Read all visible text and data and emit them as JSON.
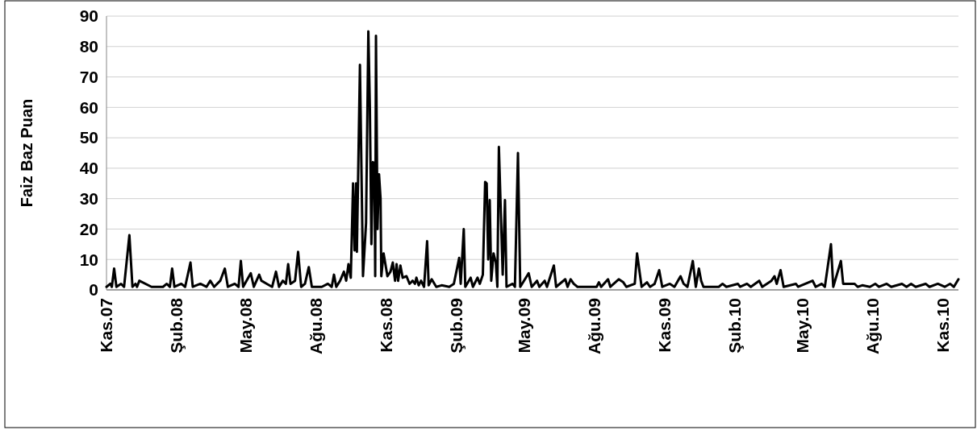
{
  "chart_data": {
    "type": "line",
    "ylabel": "Faiz Baz Puan",
    "color": "#000000",
    "grid": "y",
    "xlim": [
      "2007-11-01",
      "2010-11-21"
    ],
    "ylim": [
      0,
      90
    ],
    "yticks": [
      0,
      10,
      20,
      30,
      40,
      50,
      60,
      70,
      80,
      90
    ],
    "xticks": [
      {
        "value": "2007-11-01",
        "label": "Kas.07"
      },
      {
        "value": "2008-02-01",
        "label": "Şub.08"
      },
      {
        "value": "2008-05-01",
        "label": "May.08"
      },
      {
        "value": "2008-08-01",
        "label": "Ağu.08"
      },
      {
        "value": "2008-11-01",
        "label": "Kas.08"
      },
      {
        "value": "2009-02-01",
        "label": "Şub.09"
      },
      {
        "value": "2009-05-01",
        "label": "May.09"
      },
      {
        "value": "2009-08-01",
        "label": "Ağu.09"
      },
      {
        "value": "2009-11-01",
        "label": "Kas.09"
      },
      {
        "value": "2010-02-01",
        "label": "Şub.10"
      },
      {
        "value": "2010-05-01",
        "label": "May.10"
      },
      {
        "value": "2010-08-01",
        "label": "Ağu.10"
      },
      {
        "value": "2010-11-01",
        "label": "Kas.10"
      }
    ],
    "x": [
      "2007-11-01",
      "2007-11-06",
      "2007-11-08",
      "2007-11-11",
      "2007-11-14",
      "2007-11-20",
      "2007-11-24",
      "2007-12-01",
      "2007-12-05",
      "2007-12-09",
      "2007-12-11",
      "2007-12-14",
      "2007-12-30",
      "2008-01-14",
      "2008-01-19",
      "2008-01-23",
      "2008-01-26",
      "2008-01-29",
      "2008-02-07",
      "2008-02-12",
      "2008-02-19",
      "2008-02-22",
      "2008-03-03",
      "2008-03-11",
      "2008-03-16",
      "2008-03-21",
      "2008-03-29",
      "2008-04-04",
      "2008-04-08",
      "2008-04-17",
      "2008-04-22",
      "2008-04-25",
      "2008-04-28",
      "2008-05-08",
      "2008-05-12",
      "2008-05-19",
      "2008-05-22",
      "2008-05-29",
      "2008-06-05",
      "2008-06-10",
      "2008-06-14",
      "2008-06-19",
      "2008-06-23",
      "2008-06-26",
      "2008-06-29",
      "2008-07-05",
      "2008-07-09",
      "2008-07-13",
      "2008-07-18",
      "2008-07-23",
      "2008-07-27",
      "2008-08-09",
      "2008-08-17",
      "2008-08-22",
      "2008-08-25",
      "2008-08-28",
      "2008-09-02",
      "2008-09-07",
      "2008-09-10",
      "2008-09-13",
      "2008-09-16",
      "2008-09-19",
      "2008-09-21",
      "2008-09-23",
      "2008-09-24",
      "2008-09-28",
      "2008-10-02",
      "2008-10-06",
      "2008-10-09",
      "2008-10-11",
      "2008-10-13",
      "2008-10-15",
      "2008-10-17",
      "2008-10-18",
      "2008-10-19",
      "2008-10-21",
      "2008-10-23",
      "2008-10-25",
      "2008-10-26",
      "2008-10-29",
      "2008-11-03",
      "2008-11-07",
      "2008-11-10",
      "2008-11-13",
      "2008-11-15",
      "2008-11-17",
      "2008-11-20",
      "2008-11-23",
      "2008-11-28",
      "2008-12-02",
      "2008-12-06",
      "2008-12-09",
      "2008-12-11",
      "2008-12-14",
      "2008-12-17",
      "2008-12-21",
      "2008-12-25",
      "2008-12-27",
      "2008-12-31",
      "2009-01-06",
      "2009-01-13",
      "2009-01-23",
      "2009-01-29",
      "2009-02-05",
      "2009-02-07",
      "2009-02-11",
      "2009-02-13",
      "2009-02-20",
      "2009-02-23",
      "2009-03-01",
      "2009-03-04",
      "2009-03-08",
      "2009-03-11",
      "2009-03-13",
      "2009-03-15",
      "2009-03-17",
      "2009-03-19",
      "2009-03-22",
      "2009-03-25",
      "2009-03-27",
      "2009-03-29",
      "2009-04-03",
      "2009-04-06",
      "2009-04-08",
      "2009-04-16",
      "2009-04-19",
      "2009-04-23",
      "2009-04-26",
      "2009-05-07",
      "2009-05-11",
      "2009-05-18",
      "2009-05-21",
      "2009-05-28",
      "2009-05-31",
      "2009-06-09",
      "2009-06-12",
      "2009-06-24",
      "2009-06-27",
      "2009-07-01",
      "2009-07-05",
      "2009-07-10",
      "2009-08-04",
      "2009-08-07",
      "2009-08-10",
      "2009-08-19",
      "2009-08-22",
      "2009-09-02",
      "2009-09-08",
      "2009-09-12",
      "2009-09-23",
      "2009-09-26",
      "2009-10-02",
      "2009-10-09",
      "2009-10-13",
      "2009-10-19",
      "2009-10-25",
      "2009-10-29",
      "2009-11-08",
      "2009-11-14",
      "2009-11-22",
      "2009-11-26",
      "2009-12-01",
      "2009-12-08",
      "2009-12-12",
      "2009-12-16",
      "2009-12-19",
      "2009-12-22",
      "2010-01-11",
      "2010-01-16",
      "2010-01-21",
      "2010-02-05",
      "2010-02-08",
      "2010-02-17",
      "2010-02-22",
      "2010-03-05",
      "2010-03-09",
      "2010-03-15",
      "2010-03-21",
      "2010-03-25",
      "2010-03-28",
      "2010-04-02",
      "2010-04-06",
      "2010-04-22",
      "2010-04-25",
      "2010-05-14",
      "2010-05-18",
      "2010-05-26",
      "2010-05-30",
      "2010-06-07",
      "2010-06-10",
      "2010-06-20",
      "2010-06-23",
      "2010-07-08",
      "2010-07-12",
      "2010-07-18",
      "2010-07-28",
      "2010-08-04",
      "2010-08-09",
      "2010-08-19",
      "2010-08-25",
      "2010-09-08",
      "2010-09-14",
      "2010-09-20",
      "2010-09-26",
      "2010-10-09",
      "2010-10-14",
      "2010-10-25",
      "2010-11-03",
      "2010-11-10",
      "2010-11-15",
      "2010-11-21"
    ],
    "values": [
      1,
      2,
      1,
      7,
      1,
      2,
      1,
      18,
      1,
      2,
      1,
      3,
      1,
      1,
      2,
      1,
      7,
      1,
      2,
      1,
      9,
      1,
      2,
      1,
      3,
      1,
      3,
      7,
      1,
      2,
      1,
      9.5,
      1,
      5.5,
      1,
      5,
      3,
      2,
      1,
      6,
      1,
      3,
      2,
      8.5,
      2,
      3,
      12.5,
      1,
      2,
      7.5,
      1,
      1,
      2,
      1,
      5,
      1,
      3,
      6,
      3,
      8.5,
      4,
      35,
      13,
      35,
      12.5,
      74,
      4.5,
      22,
      85,
      60,
      15,
      42,
      41.5,
      4.5,
      83.5,
      20,
      38,
      30,
      4.5,
      12,
      4.5,
      6,
      9,
      3,
      8.5,
      3,
      8,
      4,
      4.5,
      2,
      3,
      2,
      4,
      1.5,
      3,
      1,
      16,
      1.5,
      3.5,
      1,
      1.5,
      1,
      2,
      10.5,
      2,
      20,
      1,
      4,
      1,
      4,
      2,
      5,
      35.5,
      35,
      10,
      29.5,
      3,
      12,
      9,
      1,
      47,
      5,
      29.5,
      1,
      2,
      1,
      45,
      1,
      5.5,
      1,
      3,
      1,
      3,
      1,
      8,
      1,
      3.5,
      1,
      3.5,
      2,
      1,
      1,
      2.5,
      1,
      3.5,
      1,
      3.5,
      2.5,
      1,
      2,
      12,
      1,
      2.5,
      1,
      2,
      6.5,
      1,
      2,
      1,
      4.5,
      2,
      1,
      9.5,
      1,
      7,
      3,
      1,
      1,
      2,
      1,
      2,
      1,
      2,
      1,
      3,
      1,
      2,
      3,
      4.5,
      2,
      6.5,
      1,
      2,
      1,
      3,
      1,
      2,
      1,
      15,
      1,
      9.5,
      2,
      2,
      1,
      1.5,
      1,
      2,
      1,
      2,
      1,
      2,
      1,
      2,
      1,
      2,
      1,
      2,
      1,
      2,
      1,
      3.5
    ]
  }
}
